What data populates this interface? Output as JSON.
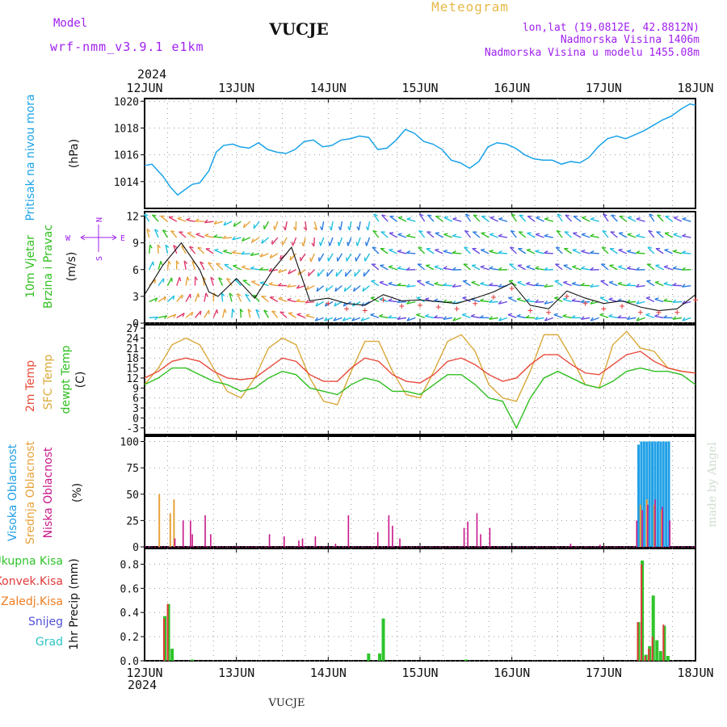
{
  "header": {
    "model_label": "Model",
    "model_name": "wrf-nmm_v3.9.1  e1km",
    "station": "VUCJE",
    "meteogram": "Meteogram",
    "lonlat": "lon,lat (19.0812E, 42.8812N)",
    "altitude": "Nadmorska Visina 1406m",
    "model_altitude": "Nadmorska Visina u modelu 1455.08m",
    "year_top": "2024",
    "year_bottom": "2024",
    "footer_station": "VUCJE",
    "watermark": "made by Angel"
  },
  "colors": {
    "pressure": "#1aa3e8",
    "temp2m": "#e84a3a",
    "sfc": "#d9a93a",
    "dewpt": "#2fbf1f",
    "high": "#1fa0e6",
    "mid": "#e8a23a",
    "low": "#c8178a",
    "precip_total": "#2ec42a",
    "precip_conv": "#e03a3a",
    "precip_frozen": "#ef7d20",
    "snow": "#5050d8",
    "grad": "#2ec4c4",
    "title_gold": "#e8b84a",
    "purple": "#a020f0"
  },
  "chart_data": [
    {
      "type": "line",
      "panel": "pressure",
      "ylabel_main": "Pritisak na nivou mora",
      "ylabel_unit": "(hPa)",
      "x_ticks": [
        "12JUN",
        "13JUN",
        "14JUN",
        "15JUN",
        "16JUN",
        "17JUN",
        "18JUN"
      ],
      "ylim": [
        1012,
        1020.2
      ],
      "yticks": [
        1014,
        1016,
        1018,
        1020
      ],
      "x_range_days": [
        0,
        6
      ],
      "series": [
        {
          "x": [
            0.0,
            0.08,
            0.2,
            0.28,
            0.36,
            0.44,
            0.52,
            0.6,
            0.7,
            0.78,
            0.86,
            0.96,
            1.04,
            1.14,
            1.24,
            1.34,
            1.44,
            1.54,
            1.64,
            1.74,
            1.84,
            1.94,
            2.04,
            2.14,
            2.24,
            2.34,
            2.44,
            2.54,
            2.64,
            2.74,
            2.84,
            2.94,
            3.04,
            3.14,
            3.24,
            3.34,
            3.44,
            3.54,
            3.64,
            3.74,
            3.84,
            3.94,
            4.04,
            4.14,
            4.24,
            4.34,
            4.44,
            4.54,
            4.64,
            4.74,
            4.84,
            4.94,
            5.04,
            5.14,
            5.24,
            5.34,
            5.44,
            5.54,
            5.64,
            5.74,
            5.84,
            5.94,
            6.0
          ],
          "values": [
            1015.2,
            1015.3,
            1014.4,
            1013.6,
            1013.0,
            1013.4,
            1013.8,
            1013.9,
            1014.8,
            1016.2,
            1016.7,
            1016.8,
            1016.6,
            1016.5,
            1016.9,
            1016.4,
            1016.2,
            1016.1,
            1016.4,
            1017.0,
            1017.1,
            1016.6,
            1016.7,
            1017.1,
            1017.2,
            1017.4,
            1017.3,
            1016.4,
            1016.5,
            1017.1,
            1017.9,
            1017.6,
            1017.0,
            1016.8,
            1016.4,
            1015.6,
            1015.4,
            1015.0,
            1015.5,
            1016.6,
            1016.9,
            1016.8,
            1016.5,
            1016.0,
            1015.7,
            1015.6,
            1015.6,
            1015.3,
            1015.5,
            1015.4,
            1015.8,
            1016.6,
            1017.2,
            1017.4,
            1017.2,
            1017.5,
            1017.8,
            1018.2,
            1018.6,
            1018.9,
            1019.4,
            1019.8,
            1019.7
          ]
        }
      ]
    },
    {
      "type": "barb",
      "panel": "wind",
      "ylabel_main": "10m Vjetar",
      "ylabel_sub": "Brzina i Pravac",
      "ylabel_unit": "(m/s)",
      "compass": {
        "n": "N",
        "w": "W",
        "e": "E",
        "s": "S"
      },
      "ylim": [
        0,
        12.5
      ],
      "yticks": [
        0,
        3,
        6,
        9,
        12
      ],
      "speed_x": [
        0.0,
        0.2,
        0.4,
        0.6,
        0.7,
        0.8,
        1.0,
        1.2,
        1.4,
        1.6,
        1.8,
        2.0,
        2.2,
        2.4,
        2.6,
        2.8,
        3.0,
        3.2,
        3.4,
        3.6,
        3.8,
        4.0,
        4.2,
        4.4,
        4.6,
        4.8,
        5.0,
        5.2,
        5.4,
        5.6,
        5.8,
        6.0
      ],
      "speed": [
        3.2,
        6.5,
        9.0,
        6.0,
        3.5,
        3.0,
        5.0,
        2.8,
        6.0,
        8.5,
        2.5,
        2.8,
        2.2,
        2.0,
        3.2,
        2.5,
        2.6,
        2.4,
        2.2,
        2.8,
        3.5,
        4.5,
        2.0,
        1.6,
        3.6,
        2.8,
        2.2,
        2.5,
        1.8,
        1.4,
        1.6,
        3.2
      ]
    },
    {
      "type": "line",
      "panel": "temperature",
      "ylabel_2m": "2m Temp",
      "ylabel_sfc": "SFC Temp",
      "ylabel_dew": "dewpt Temp",
      "ylabel_unit": "(C)",
      "ylim": [
        -5,
        28
      ],
      "yticks": [
        -3,
        0,
        3,
        6,
        9,
        12,
        15,
        18,
        21,
        24,
        27
      ],
      "x": [
        0.0,
        0.15,
        0.3,
        0.45,
        0.6,
        0.75,
        0.9,
        1.05,
        1.2,
        1.35,
        1.5,
        1.65,
        1.8,
        1.95,
        2.1,
        2.25,
        2.4,
        2.55,
        2.7,
        2.85,
        3.0,
        3.15,
        3.3,
        3.45,
        3.6,
        3.75,
        3.9,
        4.05,
        4.2,
        4.35,
        4.5,
        4.65,
        4.8,
        4.95,
        5.1,
        5.25,
        5.4,
        5.55,
        5.7,
        5.85,
        6.0
      ],
      "series": [
        {
          "name": "2m Temp",
          "values": [
            12,
            14,
            17,
            18,
            17,
            14,
            12,
            11.5,
            12,
            15,
            18,
            17,
            13,
            11,
            11,
            15,
            18,
            17,
            13,
            11,
            10.5,
            13,
            17,
            18,
            16,
            13,
            11,
            12,
            16,
            19,
            19,
            16,
            13.5,
            13,
            16,
            19,
            20,
            17,
            15,
            14,
            13.5
          ]
        },
        {
          "name": "SFC Temp",
          "values": [
            10,
            15,
            22,
            24,
            22,
            15,
            8,
            6,
            12,
            21,
            24,
            22,
            12,
            5,
            4,
            14,
            23,
            23,
            14,
            7,
            6,
            14,
            23,
            25,
            20,
            10,
            6,
            5,
            14,
            25,
            25,
            18,
            10,
            9,
            22,
            26,
            21,
            20,
            15,
            14,
            13.5
          ]
        },
        {
          "name": "dewpt Temp",
          "values": [
            10,
            12,
            15,
            15,
            13,
            11,
            10,
            8,
            9,
            12,
            14,
            13,
            9,
            8,
            7,
            10,
            12,
            11,
            8,
            8,
            7,
            10,
            13,
            13,
            10,
            6,
            5,
            -3,
            6,
            12,
            14,
            12,
            10,
            9,
            11,
            14,
            15,
            14,
            14,
            13,
            10
          ]
        }
      ]
    },
    {
      "type": "bar",
      "panel": "cloud",
      "ylabel_high": "Visoka Oblacnost",
      "ylabel_mid": "Srednja Oblacnost",
      "ylabel_low": "Niska Oblacnost",
      "ylabel_unit": "(%)",
      "ylim": [
        0,
        105
      ],
      "yticks": [
        0,
        25,
        50,
        75,
        100
      ],
      "high_x": [
        5.38,
        5.41,
        5.44,
        5.47,
        5.5,
        5.53,
        5.56,
        5.59,
        5.62,
        5.65,
        5.68,
        5.71
      ],
      "high_values": [
        97,
        100,
        100,
        100,
        100,
        100,
        100,
        100,
        100,
        100,
        100,
        100
      ],
      "mid_x": [
        0.16,
        0.28,
        0.32,
        5.4,
        5.47,
        5.55,
        5.63
      ],
      "mid_values": [
        50,
        32,
        45,
        40,
        45,
        40,
        35
      ],
      "low_x": [
        0.33,
        0.42,
        0.5,
        0.52,
        0.66,
        0.72,
        1.36,
        1.52,
        1.68,
        1.72,
        1.86,
        2.08,
        2.22,
        2.54,
        2.66,
        2.7,
        2.78,
        3.48,
        3.52,
        3.62,
        3.66,
        3.76,
        4.64,
        4.96,
        5.36,
        5.42,
        5.48,
        5.56,
        5.64,
        5.72
      ],
      "low_values": [
        8,
        25,
        25,
        12,
        30,
        12,
        12,
        10,
        6,
        8,
        10,
        3,
        30,
        14,
        30,
        20,
        8,
        18,
        24,
        32,
        12,
        18,
        3,
        2,
        25,
        35,
        40,
        45,
        38,
        25
      ]
    },
    {
      "type": "bar",
      "panel": "precip",
      "legend": [
        "Ukupna Kisa",
        "Konvek.Kisa",
        "Zaledj.Kisa",
        "Snijeg",
        "Grad"
      ],
      "ylabel_unit": "1hr Precip (mm)",
      "ylim": [
        0,
        0.93
      ],
      "yticks": [
        0.0,
        0.2,
        0.4,
        0.6,
        0.8
      ],
      "x_ticks": [
        "12JUN",
        "13JUN",
        "14JUN",
        "15JUN",
        "16JUN",
        "17JUN",
        "18JUN"
      ],
      "total_x": [
        0.22,
        0.26,
        0.3,
        0.52,
        2.44,
        2.56,
        2.6,
        3.5,
        5.38,
        5.42,
        5.46,
        5.5,
        5.54,
        5.58,
        5.62,
        5.66,
        5.7
      ],
      "total_values": [
        0.37,
        0.47,
        0.1,
        0.01,
        0.06,
        0.06,
        0.35,
        0.01,
        0.32,
        0.83,
        0.05,
        0.12,
        0.54,
        0.17,
        0.08,
        0.29,
        0.04
      ],
      "conv_x": [
        0.22,
        0.26,
        5.38,
        5.42,
        5.46,
        5.5,
        5.54,
        5.66
      ],
      "conv_values": [
        0.35,
        0.47,
        0.32,
        0.8,
        0.04,
        0.1,
        0.2,
        0.3
      ]
    }
  ]
}
